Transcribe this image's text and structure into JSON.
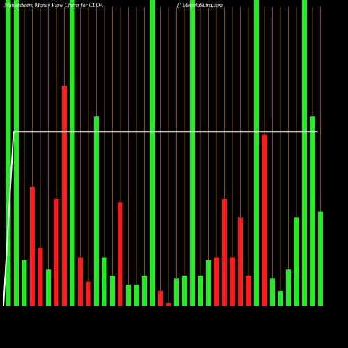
{
  "chart_data": {
    "type": "bar",
    "title": "MunafaSutra  Money Flow  Charts for CLOA",
    "subtitle": "(( MunafaSutra.com",
    "values": [
      100,
      100,
      15,
      39,
      19,
      12,
      35,
      72,
      100,
      16,
      8,
      62,
      16,
      10,
      34,
      7,
      7,
      10,
      100,
      5,
      1,
      9,
      10,
      100,
      10,
      15,
      16,
      35,
      16,
      29,
      10,
      100,
      56,
      9,
      5,
      12,
      29,
      100,
      62,
      31
    ],
    "colors": [
      "#22ee22",
      "#22ee22",
      "#22ee22",
      "#ff1a1a",
      "#ff1a1a",
      "#22ee22",
      "#ff1a1a",
      "#ff1a1a",
      "#22ee22",
      "#ff1a1a",
      "#ff1a1a",
      "#22ee22",
      "#22ee22",
      "#22ee22",
      "#ff1a1a",
      "#22ee22",
      "#22ee22",
      "#22ee22",
      "#22ee22",
      "#ff1a1a",
      "#ff1a1a",
      "#22ee22",
      "#22ee22",
      "#22ee22",
      "#22ee22",
      "#22ee22",
      "#ff1a1a",
      "#ff1a1a",
      "#ff1a1a",
      "#ff1a1a",
      "#ff1a1a",
      "#22ee22",
      "#ff1a1a",
      "#22ee22",
      "#22ee22",
      "#22ee22",
      "#22ee22",
      "#22ee22",
      "#22ee22",
      "#22ee22"
    ],
    "line": {
      "color": "#ffffff",
      "values": [
        0,
        57,
        57,
        57,
        57,
        57,
        57,
        57,
        57,
        57,
        57,
        57,
        57,
        57,
        57,
        57,
        57,
        57,
        57,
        57,
        57,
        57,
        57,
        57,
        57,
        57,
        57,
        57,
        57,
        57,
        57,
        57,
        57,
        57,
        57,
        57,
        57,
        57,
        57,
        57
      ]
    },
    "ylim": [
      0,
      100
    ],
    "gridline_color": "#8a4a00"
  }
}
